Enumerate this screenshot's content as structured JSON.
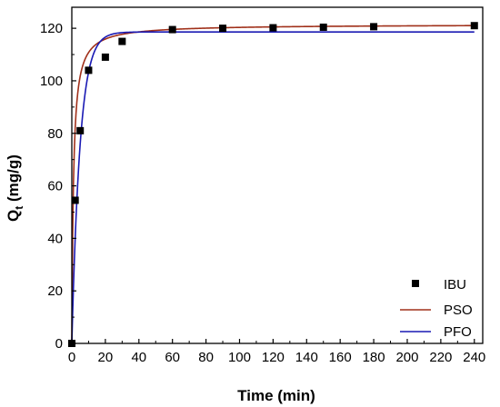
{
  "chart_data": {
    "type": "scatter",
    "xlabel": "Time (min)",
    "ylabel_main": "Q",
    "ylabel_sub": "t",
    "ylabel_unit": " (mg/g)",
    "xlim": [
      0,
      245
    ],
    "ylim": [
      0,
      128
    ],
    "xticks": [
      0,
      20,
      40,
      60,
      80,
      100,
      120,
      140,
      160,
      180,
      200,
      220,
      240
    ],
    "yticks": [
      0,
      20,
      40,
      60,
      80,
      100,
      120
    ],
    "grid": false,
    "legend_position": "bottom-right",
    "series": [
      {
        "name": "IBU",
        "kind": "markers",
        "marker": "square",
        "color": "#000000",
        "x": [
          0,
          2,
          5,
          10,
          20,
          30,
          60,
          90,
          120,
          150,
          180,
          240
        ],
        "y": [
          0,
          54.5,
          81,
          104,
          109,
          115,
          119.5,
          120,
          120.2,
          120.4,
          120.6,
          121
        ]
      },
      {
        "name": "PSO",
        "kind": "line",
        "color": "#a0301a",
        "model": {
          "qe": 121.5,
          "k2": 0.0085
        }
      },
      {
        "name": "PFO",
        "kind": "line",
        "color": "#1a1ab4",
        "model": {
          "qe": 118.6,
          "k1": 0.205
        }
      }
    ]
  }
}
